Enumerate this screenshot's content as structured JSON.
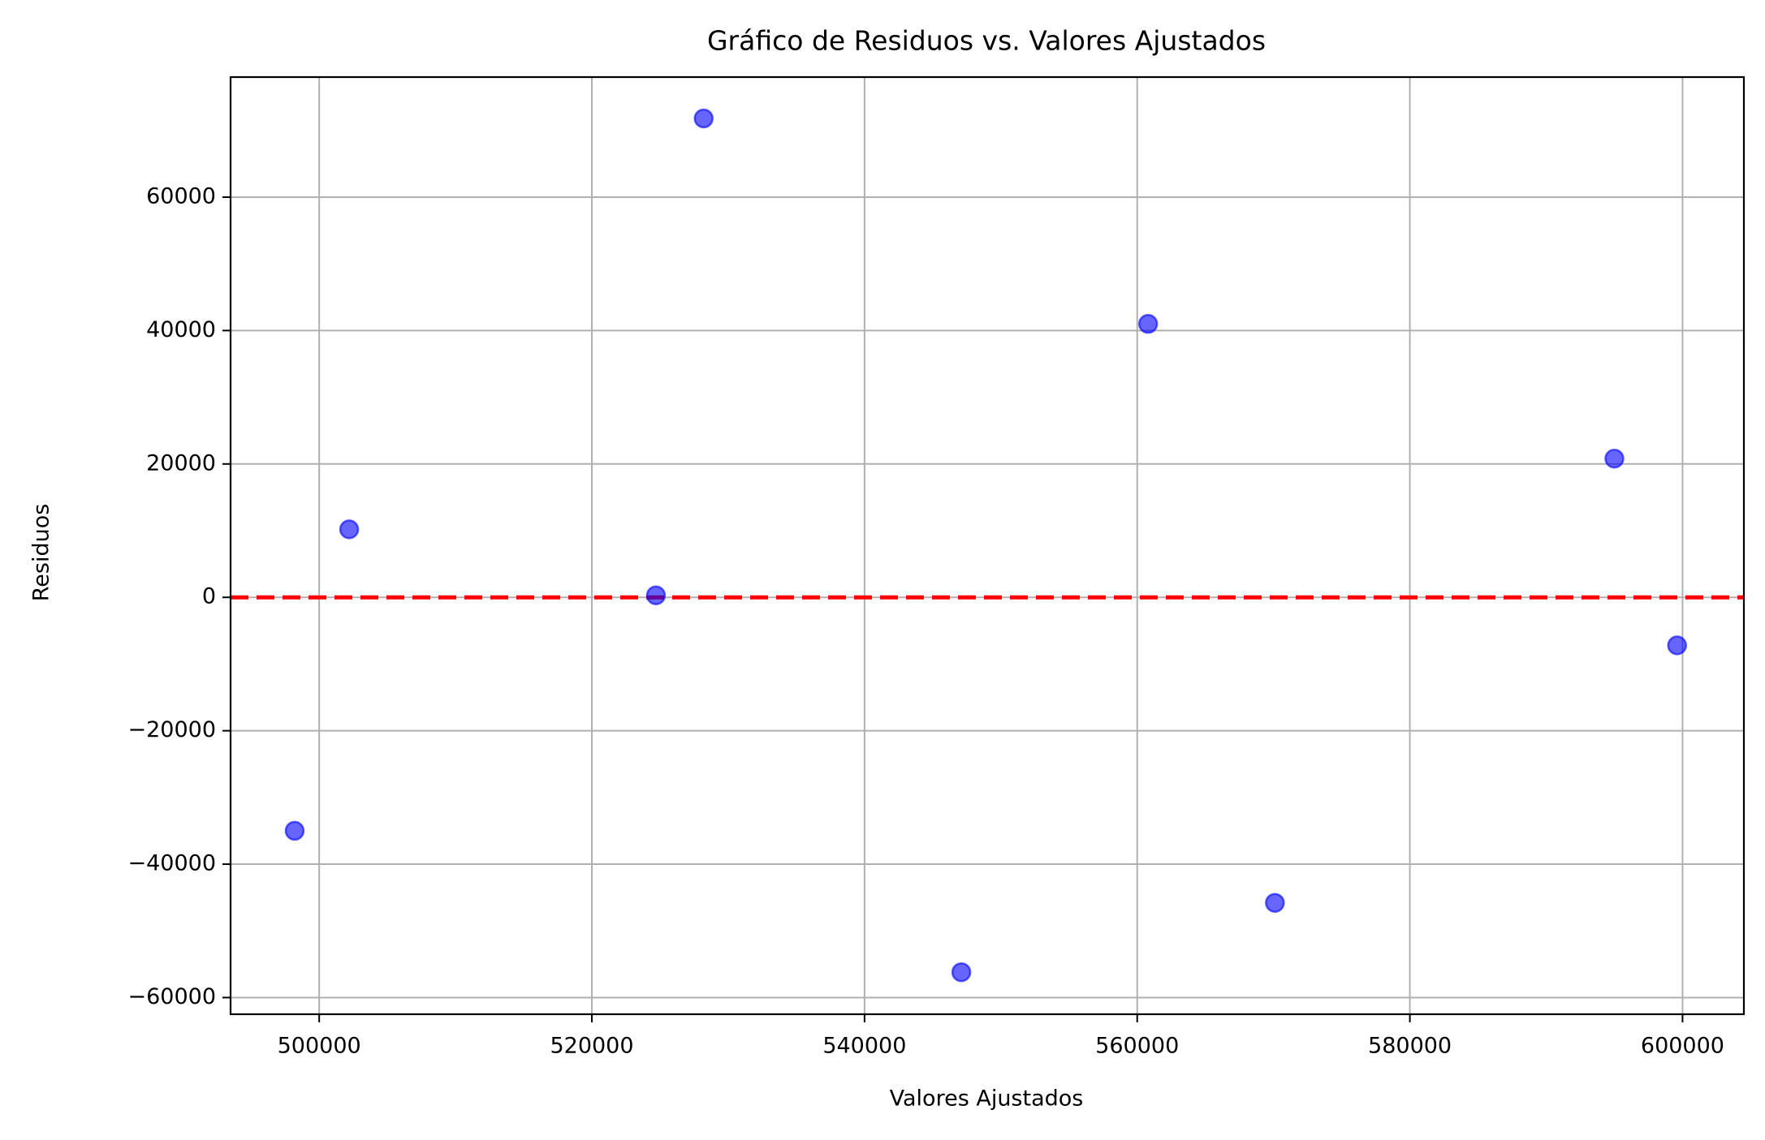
{
  "chart_data": {
    "type": "scatter",
    "title": "Gráfico de Residuos vs. Valores Ajustados",
    "xlabel": "Valores Ajustados",
    "ylabel": "Residuos",
    "xlim": [
      493500,
      604500
    ],
    "ylim": [
      -62500,
      78000
    ],
    "xticks": [
      500000,
      520000,
      540000,
      560000,
      580000,
      600000
    ],
    "xtick_labels": [
      "500000",
      "520000",
      "540000",
      "560000",
      "580000",
      "600000"
    ],
    "yticks": [
      -60000,
      -40000,
      -20000,
      0,
      20000,
      40000,
      60000
    ],
    "ytick_labels": [
      "−60000",
      "−40000",
      "−20000",
      "0",
      "20000",
      "40000",
      "60000"
    ],
    "grid": true,
    "series": [
      {
        "x": [
          498200,
          502200,
          524700,
          528200,
          547100,
          560800,
          570100,
          595000,
          599600
        ],
        "y": [
          -35000,
          10200,
          300,
          71800,
          -56200,
          41000,
          -45800,
          20800,
          -7200
        ],
        "color": "#0000ff",
        "alpha": 0.6
      }
    ],
    "reference_line": {
      "y": 0,
      "color": "#ff0000",
      "style": "dashed"
    }
  }
}
